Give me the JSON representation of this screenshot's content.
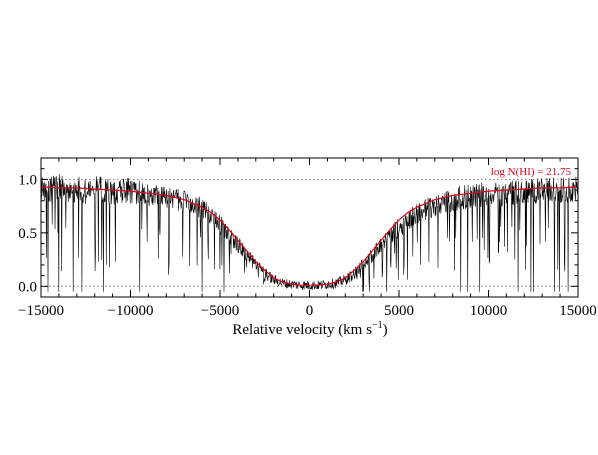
{
  "chart_data": {
    "type": "line",
    "title": "",
    "xlabel_main": "Relative velocity (km s",
    "xlabel_sup": "−1",
    "xlabel_close": ")",
    "ylabel": "",
    "xlim": [
      -15000,
      15000
    ],
    "ylim": [
      -0.1,
      1.2
    ],
    "x_ticks": [
      -15000,
      -10000,
      -5000,
      0,
      5000,
      10000,
      15000
    ],
    "x_tick_labels": [
      "−15000",
      "−10000",
      "−5000",
      "0",
      "5000",
      "10000",
      "15000"
    ],
    "y_ticks": [
      0.0,
      0.5,
      1.0
    ],
    "y_tick_labels": [
      "0.0",
      "0.5",
      "1.0"
    ],
    "reference_lines": [
      0.0,
      1.0
    ],
    "annotation": "log N(HI) = 21.75",
    "colors": {
      "spectrum": "#000000",
      "model": "#e0001b",
      "reference": "#888888",
      "annotation": "#e0001b"
    },
    "series": [
      {
        "style": "spectrum",
        "x": [
          -15000,
          -14500,
          -14000,
          -13500,
          -13000,
          -12500,
          -12000,
          -11500,
          -11000,
          -10500,
          -10000,
          -9500,
          -9000,
          -8500,
          -8000,
          -7500,
          -7000,
          -6500,
          -6000,
          -5500,
          -5000,
          -4500,
          -4000,
          -3500,
          -3000,
          -2500,
          -2000,
          -1500,
          -1000,
          -500,
          0,
          500,
          1000,
          1500,
          2000,
          2500,
          3000,
          3500,
          4000,
          4500,
          5000,
          5500,
          6000,
          6500,
          7000,
          7500,
          8000,
          8500,
          9000,
          9500,
          10000,
          10500,
          11000,
          11500,
          12000,
          12500,
          13000,
          13500,
          14000,
          14500,
          15000
        ],
        "y": [
          0.92,
          0.9,
          0.93,
          0.88,
          0.91,
          0.89,
          0.92,
          0.9,
          0.87,
          0.9,
          0.89,
          0.88,
          0.86,
          0.85,
          0.84,
          0.82,
          0.8,
          0.77,
          0.72,
          0.66,
          0.58,
          0.49,
          0.39,
          0.29,
          0.2,
          0.12,
          0.06,
          0.03,
          0.02,
          0.01,
          0.01,
          0.01,
          0.02,
          0.03,
          0.06,
          0.12,
          0.2,
          0.29,
          0.38,
          0.47,
          0.55,
          0.62,
          0.68,
          0.72,
          0.76,
          0.79,
          0.81,
          0.83,
          0.84,
          0.85,
          0.86,
          0.86,
          0.87,
          0.88,
          0.88,
          0.89,
          0.89,
          0.9,
          0.9,
          0.9,
          0.91
        ]
      },
      {
        "style": "model",
        "x": [
          -15000,
          -14000,
          -13000,
          -12000,
          -11000,
          -10000,
          -9000,
          -8000,
          -7000,
          -6000,
          -5500,
          -5000,
          -4500,
          -4000,
          -3500,
          -3000,
          -2500,
          -2000,
          -1500,
          -1000,
          -500,
          0,
          500,
          1000,
          1500,
          2000,
          2500,
          3000,
          3500,
          4000,
          4500,
          5000,
          5500,
          6000,
          7000,
          8000,
          9000,
          10000,
          11000,
          12000,
          13000,
          14000,
          15000
        ],
        "y": [
          0.93,
          0.92,
          0.92,
          0.91,
          0.9,
          0.89,
          0.87,
          0.85,
          0.81,
          0.74,
          0.69,
          0.62,
          0.53,
          0.43,
          0.33,
          0.23,
          0.15,
          0.08,
          0.04,
          0.02,
          0.01,
          0.01,
          0.01,
          0.02,
          0.04,
          0.08,
          0.15,
          0.23,
          0.33,
          0.43,
          0.53,
          0.62,
          0.69,
          0.74,
          0.81,
          0.85,
          0.87,
          0.89,
          0.9,
          0.91,
          0.92,
          0.92,
          0.93
        ]
      }
    ]
  }
}
